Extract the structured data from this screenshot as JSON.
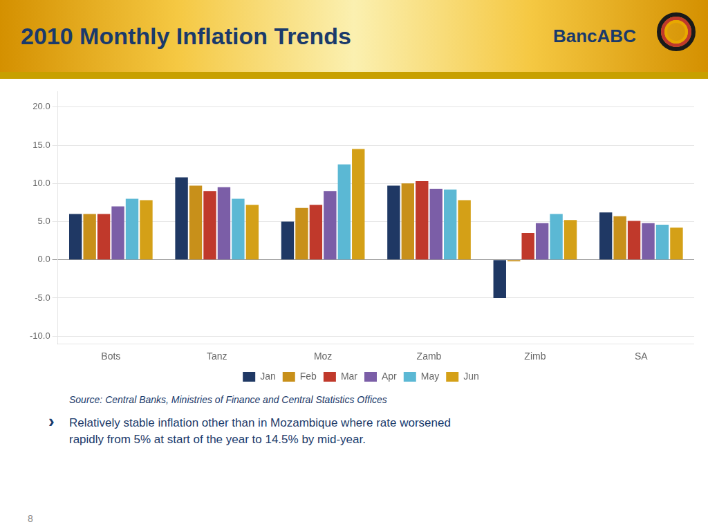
{
  "chart_data": {
    "type": "bar",
    "title": "2010 Monthly Inflation Trends",
    "annotations": [
      "BancABC",
      "Source: Central Banks, Ministries of Finance and Central Statistics Offices",
      "›",
      "Relatively stable inflation other than in Mozambique where rate worsened\nrapidly from 5% at start of the year to 14.5% by mid-year.",
      "8"
    ],
    "categories": [
      "Bots",
      "Tanz",
      "Moz",
      "Zamb",
      "Zimb",
      "SA"
    ],
    "series": [
      {
        "name": "Jan",
        "color": "#1F3864",
        "values": [
          6.0,
          10.8,
          5.0,
          9.7,
          -5.0,
          6.2
        ]
      },
      {
        "name": "Feb",
        "color": "#C8901A",
        "values": [
          6.0,
          9.7,
          6.8,
          10.0,
          -0.2,
          5.7
        ]
      },
      {
        "name": "Mar",
        "color": "#C0392B",
        "values": [
          6.0,
          9.0,
          7.2,
          10.3,
          3.5,
          5.1
        ]
      },
      {
        "name": "Apr",
        "color": "#7B5EA7",
        "values": [
          7.0,
          9.5,
          9.0,
          9.3,
          4.8,
          4.8
        ]
      },
      {
        "name": "May",
        "color": "#5BB8D4",
        "values": [
          8.0,
          8.0,
          12.5,
          9.2,
          6.0,
          4.6
        ]
      },
      {
        "name": "Jun",
        "color": "#D4A017",
        "values": [
          7.8,
          7.2,
          14.5,
          7.8,
          5.2,
          4.2
        ]
      }
    ],
    "ylim": [
      -11.0,
      22.0
    ],
    "yticks": [
      {
        "value": -10,
        "label": "-10.0"
      },
      {
        "value": -5,
        "label": "-5.0"
      },
      {
        "value": 0,
        "label": "0.0"
      },
      {
        "value": 5,
        "label": "5.0"
      },
      {
        "value": 10,
        "label": "10.0"
      },
      {
        "value": 15,
        "label": "15.0"
      },
      {
        "value": 20,
        "label": "20.0"
      }
    ],
    "grid": true,
    "legend": "bottom"
  }
}
